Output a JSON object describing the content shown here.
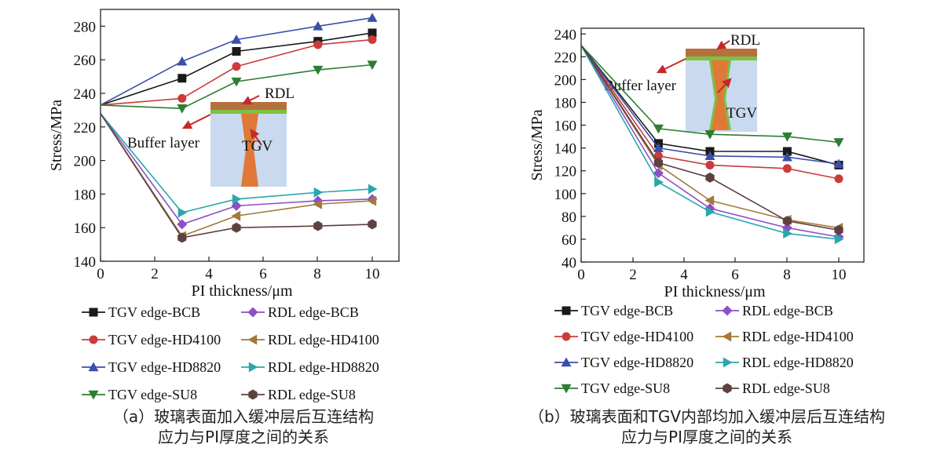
{
  "chart_data": [
    {
      "type": "line",
      "ylabel": "Stress/MPa",
      "xlabel": "PI thickness/μm",
      "xlim": [
        0,
        10
      ],
      "ylim": [
        140,
        290
      ],
      "xticks": [
        "0",
        "2",
        "4",
        "6",
        "8",
        "10"
      ],
      "yticks": [
        "140",
        "160",
        "180",
        "200",
        "220",
        "240",
        "260",
        "280"
      ],
      "x": [
        0,
        3,
        5,
        8,
        10
      ],
      "series": [
        {
          "name": "TGV edge-BCB",
          "values": [
            233,
            249,
            265,
            271,
            276
          ]
        },
        {
          "name": "RDL edge-BCB",
          "values": [
            228,
            162,
            173,
            176,
            177
          ]
        },
        {
          "name": "TGV edge-HD4100",
          "values": [
            233,
            237,
            256,
            269,
            272
          ]
        },
        {
          "name": "RDL edge-HD4100",
          "values": [
            228,
            155,
            167,
            174,
            176
          ]
        },
        {
          "name": "TGV edge-HD8820",
          "values": [
            233,
            259,
            272,
            280,
            285
          ]
        },
        {
          "name": "RDL edge-HD8820",
          "values": [
            228,
            169,
            177,
            181,
            183
          ]
        },
        {
          "name": "TGV edge-SU8",
          "values": [
            233,
            231,
            247,
            254,
            257
          ]
        },
        {
          "name": "RDL edge-SU8",
          "values": [
            228,
            154,
            160,
            161,
            162
          ]
        }
      ],
      "inset": {
        "rdl": "RDL",
        "buffer": "Buffer layer",
        "tgv": "TGV"
      },
      "grid": false,
      "legend_position": "below",
      "caption_line1": "（a）玻璃表面加入缓冲层后互连结构",
      "caption_line2": "应力与PI厚度之间的关系"
    },
    {
      "type": "line",
      "ylabel": "Stress/MPa",
      "xlabel": "PI thickness/μm",
      "xlim": [
        0,
        10
      ],
      "ylim": [
        40,
        245
      ],
      "xticks": [
        "0",
        "2",
        "4",
        "6",
        "8",
        "10"
      ],
      "yticks": [
        "40",
        "60",
        "80",
        "100",
        "120",
        "140",
        "160",
        "180",
        "200",
        "220",
        "240"
      ],
      "x": [
        0,
        3,
        5,
        8,
        10
      ],
      "series": [
        {
          "name": "TGV edge-BCB",
          "values": [
            230,
            144,
            137,
            137,
            125
          ]
        },
        {
          "name": "RDL edge-BCB",
          "values": [
            230,
            118,
            87,
            70,
            62
          ]
        },
        {
          "name": "TGV edge-HD4100",
          "values": [
            230,
            133,
            125,
            122,
            113
          ]
        },
        {
          "name": "RDL edge-HD4100",
          "values": [
            230,
            125,
            94,
            77,
            70
          ]
        },
        {
          "name": "TGV edge-HD8820",
          "values": [
            230,
            140,
            133,
            132,
            126
          ]
        },
        {
          "name": "RDL edge-HD8820",
          "values": [
            230,
            110,
            84,
            65,
            60
          ]
        },
        {
          "name": "TGV edge-SU8",
          "values": [
            230,
            157,
            152,
            150,
            145
          ]
        },
        {
          "name": "RDL edge-SU8",
          "values": [
            230,
            127,
            114,
            76,
            68
          ]
        }
      ],
      "inset": {
        "rdl": "RDL",
        "buffer": "Buffer layer",
        "tgv": "TGV"
      },
      "grid": false,
      "legend_position": "below",
      "caption_line1": "（b）玻璃表面和TGV内部均加入缓冲层后互连结构",
      "caption_line2": "应力与PI厚度之间的关系"
    }
  ],
  "styles": [
    {
      "color": "#1a1a1a",
      "marker": "square"
    },
    {
      "color": "#8a4fc9",
      "marker": "diamond"
    },
    {
      "color": "#cc3a3a",
      "marker": "circle"
    },
    {
      "color": "#a27a3c",
      "marker": "tri-left"
    },
    {
      "color": "#3a4fa8",
      "marker": "tri-up"
    },
    {
      "color": "#2aa8a8",
      "marker": "tri-right"
    },
    {
      "color": "#2e7d32",
      "marker": "tri-down"
    },
    {
      "color": "#5d4040",
      "marker": "hexagon"
    }
  ],
  "colors": {
    "glass": "#c9d9ef",
    "rdl": "#b5713d",
    "buffer": "#7cc142",
    "tgv": "#e07838",
    "arrow": "#c62828"
  }
}
